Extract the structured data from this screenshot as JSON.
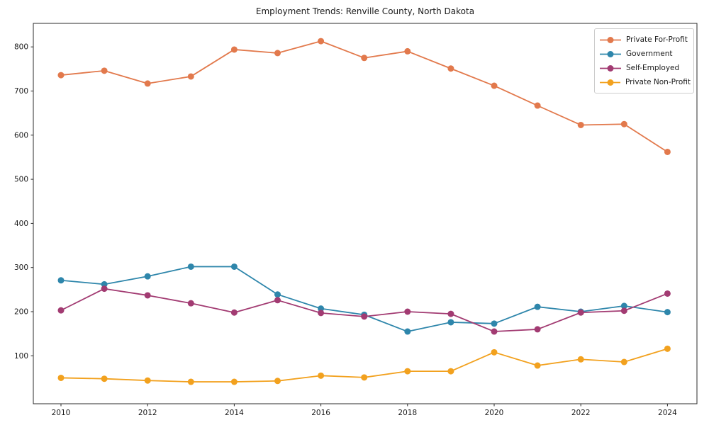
{
  "figure": {
    "background": "#ffffff",
    "text_color": "#1a1a1a",
    "spine_color": "#2b2b2b",
    "legend_border_color": "#cccccc"
  },
  "chart_data": {
    "type": "line",
    "title": "Employment Trends: Renville County, North Dakota",
    "xlabel": "",
    "ylabel": "",
    "x": [
      2010,
      2011,
      2012,
      2013,
      2014,
      2015,
      2016,
      2017,
      2018,
      2019,
      2020,
      2021,
      2022,
      2023,
      2024
    ],
    "series": [
      {
        "name": "Private For-Profit",
        "color": "#e2794c",
        "values": [
          736,
          746,
          717,
          733,
          794,
          786,
          813,
          775,
          790,
          751,
          712,
          667,
          623,
          625,
          562
        ]
      },
      {
        "name": "Government",
        "color": "#2e86ab",
        "values": [
          271,
          262,
          280,
          302,
          302,
          239,
          207,
          193,
          155,
          176,
          173,
          211,
          200,
          213,
          199
        ]
      },
      {
        "name": "Self-Employed",
        "color": "#a23b72",
        "values": [
          203,
          252,
          237,
          219,
          198,
          226,
          197,
          189,
          200,
          195,
          155,
          160,
          198,
          202,
          241
        ]
      },
      {
        "name": "Private Non-Profit",
        "color": "#f2a11e",
        "values": [
          50,
          48,
          44,
          41,
          41,
          43,
          55,
          51,
          65,
          65,
          108,
          78,
          92,
          86,
          116
        ]
      }
    ],
    "xticks": [
      2010,
      2012,
      2014,
      2016,
      2018,
      2020,
      2022,
      2024
    ],
    "yticks": [
      100,
      200,
      300,
      400,
      500,
      600,
      700,
      800
    ],
    "xlim": [
      2009.36,
      2024.68
    ],
    "ylim": [
      -9,
      853
    ],
    "grid": false,
    "legend_position": "upper right",
    "marker": "circle",
    "line_width": 1.8,
    "marker_radius": 4.5
  }
}
